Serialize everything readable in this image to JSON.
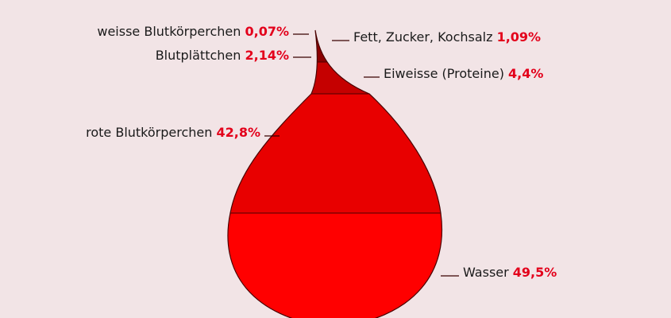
{
  "chart_data": {
    "type": "pie",
    "title": "",
    "unit": "%",
    "segments": [
      {
        "name": "weisse Blutkörperchen",
        "value": 0.07,
        "label": "0,07%",
        "color": "#f4a4a8"
      },
      {
        "name": "Fett, Zucker, Kochsalz",
        "value": 1.09,
        "label": "1,09%",
        "color": "#8a0000"
      },
      {
        "name": "Blutplättchen",
        "value": 2.14,
        "label": "2,14%",
        "color": "#a80000"
      },
      {
        "name": "Eiweisse (Proteine)",
        "value": 4.4,
        "label": "4,4%",
        "color": "#c50000"
      },
      {
        "name": "rote Blutkörperchen",
        "value": 42.8,
        "label": "42,8%",
        "color": "#e80000"
      },
      {
        "name": "Wasser",
        "value": 49.5,
        "label": "49,5%",
        "color": "#ff0000"
      }
    ]
  },
  "colors": {
    "background": "#f2e4e6",
    "outline": "#4a0000",
    "percent_text": "#e3001b"
  }
}
